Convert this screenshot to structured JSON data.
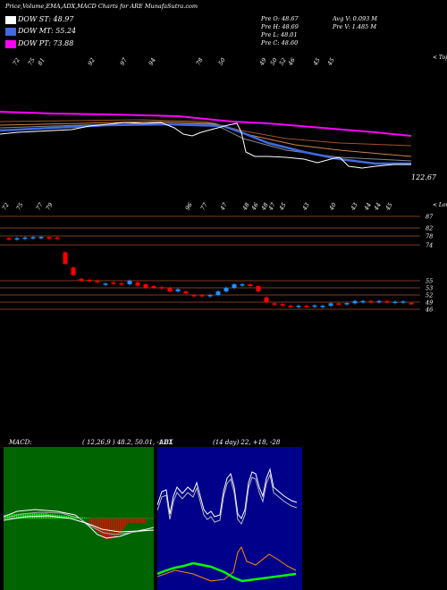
{
  "header": {
    "title": "Price,Volume,EMA,ADX,MACD Charts for ARE MunafaSutra.com",
    "legend": [
      {
        "label": "DOW ST: 48.97",
        "color": "#ffffff"
      },
      {
        "label": "DOW MT: 55.24",
        "color": "#4169e1"
      },
      {
        "label": "DOW PT: 73.88",
        "color": "#ff00ff"
      }
    ],
    "stats": {
      "open": "Pre   O: 48.67",
      "high": "Pre   H: 48.69",
      "low": "Pre   L: 48.01",
      "close": "Pre   C: 48.60",
      "avg_volume": "Avg V: 0.093 M",
      "prev_volume": "Pre   V: 1.485 M"
    }
  },
  "colors": {
    "background": "#000000",
    "bull": "#1e90ff",
    "bear": "#ff0000",
    "guide": "#a0522d",
    "macd_hist_pos": "#00ff00",
    "macd_hist_neg": "#ff0000",
    "adx_green": "#00ff00",
    "adx_orange": "#ff8c00",
    "macd_bg": "#006400",
    "adx_bg": "#00008b"
  },
  "upper_panel": {
    "top_tag": "< Tops",
    "bottom_tag": "< Lows",
    "price_label": "122.67",
    "tops": [
      "72",
      "75",
      "81",
      "92",
      "97",
      "94",
      "78",
      "50",
      "49",
      "50",
      "52",
      "46",
      "45",
      "45"
    ],
    "lows": [
      "72",
      "75",
      "77",
      "79",
      "96",
      "77",
      "47",
      "48",
      "46",
      "48",
      "47",
      "45",
      "43",
      "40",
      "43",
      "44",
      "44",
      "45"
    ]
  },
  "price_panel": {
    "levels": [
      "87",
      "82",
      "78",
      "74",
      "55",
      "53",
      "52",
      "49",
      "46"
    ],
    "candles": [
      {
        "o": 77.0,
        "c": 76.5
      },
      {
        "o": 76.4,
        "c": 77.0
      },
      {
        "o": 76.8,
        "c": 77.3
      },
      {
        "o": 77.0,
        "c": 77.5
      },
      {
        "o": 77.2,
        "c": 77.6
      },
      {
        "o": 77.5,
        "c": 77.3
      },
      {
        "o": 77.3,
        "c": 77.0
      },
      {
        "o": 70.0,
        "c": 64.0
      },
      {
        "o": 62.0,
        "c": 58.0
      },
      {
        "o": 56.0,
        "c": 55.0
      },
      {
        "o": 55.5,
        "c": 55.0
      },
      {
        "o": 55.0,
        "c": 54.6
      },
      {
        "o": 54.0,
        "c": 54.2
      },
      {
        "o": 54.5,
        "c": 54.2
      },
      {
        "o": 54.3,
        "c": 54.0
      },
      {
        "o": 54.0,
        "c": 55.0
      },
      {
        "o": 54.5,
        "c": 53.6
      },
      {
        "o": 54.0,
        "c": 53.0
      },
      {
        "o": 53.5,
        "c": 53.0
      },
      {
        "o": 53.2,
        "c": 53.0
      },
      {
        "o": 53.0,
        "c": 52.5
      },
      {
        "o": 52.5,
        "c": 52.8
      },
      {
        "o": 52.5,
        "c": 52.2
      },
      {
        "o": 52.0,
        "c": 51.8
      },
      {
        "o": 52.0,
        "c": 51.5
      },
      {
        "o": 51.5,
        "c": 52.0
      },
      {
        "o": 52.0,
        "c": 52.5
      },
      {
        "o": 52.5,
        "c": 53.0
      },
      {
        "o": 53.0,
        "c": 54.0
      },
      {
        "o": 54.0,
        "c": 54.0
      },
      {
        "o": 54.0,
        "c": 53.5
      },
      {
        "o": 53.5,
        "c": 52.5
      },
      {
        "o": 51.0,
        "c": 49.0
      },
      {
        "o": 48.5,
        "c": 48.0
      },
      {
        "o": 48.2,
        "c": 47.8
      },
      {
        "o": 47.5,
        "c": 47.0
      },
      {
        "o": 47.0,
        "c": 47.5
      },
      {
        "o": 47.5,
        "c": 47.0
      },
      {
        "o": 47.2,
        "c": 47.6
      },
      {
        "o": 47.5,
        "c": 47.5
      },
      {
        "o": 47.5,
        "c": 48.5
      },
      {
        "o": 48.5,
        "c": 48.2
      },
      {
        "o": 48.3,
        "c": 48.6
      },
      {
        "o": 48.5,
        "c": 49.5
      },
      {
        "o": 49.2,
        "c": 49.5
      },
      {
        "o": 49.5,
        "c": 49.3
      },
      {
        "o": 49.3,
        "c": 49.5
      },
      {
        "o": 49.5,
        "c": 49.0
      },
      {
        "o": 49.0,
        "c": 49.2
      },
      {
        "o": 49.3,
        "c": 49.3
      },
      {
        "o": 48.67,
        "c": 48.6
      }
    ]
  },
  "macd_panel": {
    "title": "MACD:",
    "values": "( 12,26,9 ) 48.2, 50.01, -1.81"
  },
  "adx_panel": {
    "title": "ADX",
    "values": "(14 day) 22, +18, -28"
  },
  "chart_data": [
    {
      "type": "candlestick",
      "title": "Price,Volume,EMA,ADX,MACD Charts for ARE MunafaSutra.com",
      "y_tick_labels": [
        "87",
        "82",
        "78",
        "74",
        "55",
        "53",
        "52",
        "49",
        "46"
      ],
      "series_ref": "price_panel.candles"
    },
    {
      "type": "line",
      "title": "MACD:",
      "params": "( 12,26,9 ) 48.2, 50.01, -1.81"
    },
    {
      "type": "line",
      "title": "ADX",
      "params": "(14 day) 22, +18, -28"
    }
  ]
}
